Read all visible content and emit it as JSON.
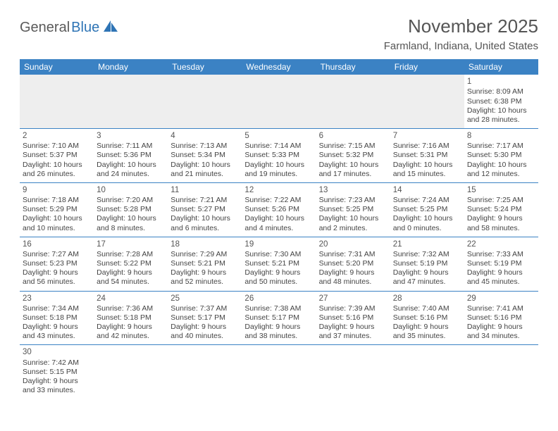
{
  "logo": {
    "text1": "General",
    "text2": "Blue"
  },
  "title": "November 2025",
  "location": "Farmland, Indiana, United States",
  "colors": {
    "header_bg": "#3b82c4",
    "header_text": "#ffffff",
    "border": "#3b82c4",
    "blank_bg": "#eeeeee",
    "logo_gray": "#5a5a5a",
    "logo_blue": "#2e74b5"
  },
  "day_names": [
    "Sunday",
    "Monday",
    "Tuesday",
    "Wednesday",
    "Thursday",
    "Friday",
    "Saturday"
  ],
  "weeks": [
    [
      {
        "blank": true
      },
      {
        "blank": true
      },
      {
        "blank": true
      },
      {
        "blank": true
      },
      {
        "blank": true
      },
      {
        "blank": true
      },
      {
        "day": "1",
        "sunrise": "Sunrise: 8:09 AM",
        "sunset": "Sunset: 6:38 PM",
        "daylight1": "Daylight: 10 hours",
        "daylight2": "and 28 minutes."
      }
    ],
    [
      {
        "day": "2",
        "sunrise": "Sunrise: 7:10 AM",
        "sunset": "Sunset: 5:37 PM",
        "daylight1": "Daylight: 10 hours",
        "daylight2": "and 26 minutes."
      },
      {
        "day": "3",
        "sunrise": "Sunrise: 7:11 AM",
        "sunset": "Sunset: 5:36 PM",
        "daylight1": "Daylight: 10 hours",
        "daylight2": "and 24 minutes."
      },
      {
        "day": "4",
        "sunrise": "Sunrise: 7:13 AM",
        "sunset": "Sunset: 5:34 PM",
        "daylight1": "Daylight: 10 hours",
        "daylight2": "and 21 minutes."
      },
      {
        "day": "5",
        "sunrise": "Sunrise: 7:14 AM",
        "sunset": "Sunset: 5:33 PM",
        "daylight1": "Daylight: 10 hours",
        "daylight2": "and 19 minutes."
      },
      {
        "day": "6",
        "sunrise": "Sunrise: 7:15 AM",
        "sunset": "Sunset: 5:32 PM",
        "daylight1": "Daylight: 10 hours",
        "daylight2": "and 17 minutes."
      },
      {
        "day": "7",
        "sunrise": "Sunrise: 7:16 AM",
        "sunset": "Sunset: 5:31 PM",
        "daylight1": "Daylight: 10 hours",
        "daylight2": "and 15 minutes."
      },
      {
        "day": "8",
        "sunrise": "Sunrise: 7:17 AM",
        "sunset": "Sunset: 5:30 PM",
        "daylight1": "Daylight: 10 hours",
        "daylight2": "and 12 minutes."
      }
    ],
    [
      {
        "day": "9",
        "sunrise": "Sunrise: 7:18 AM",
        "sunset": "Sunset: 5:29 PM",
        "daylight1": "Daylight: 10 hours",
        "daylight2": "and 10 minutes."
      },
      {
        "day": "10",
        "sunrise": "Sunrise: 7:20 AM",
        "sunset": "Sunset: 5:28 PM",
        "daylight1": "Daylight: 10 hours",
        "daylight2": "and 8 minutes."
      },
      {
        "day": "11",
        "sunrise": "Sunrise: 7:21 AM",
        "sunset": "Sunset: 5:27 PM",
        "daylight1": "Daylight: 10 hours",
        "daylight2": "and 6 minutes."
      },
      {
        "day": "12",
        "sunrise": "Sunrise: 7:22 AM",
        "sunset": "Sunset: 5:26 PM",
        "daylight1": "Daylight: 10 hours",
        "daylight2": "and 4 minutes."
      },
      {
        "day": "13",
        "sunrise": "Sunrise: 7:23 AM",
        "sunset": "Sunset: 5:25 PM",
        "daylight1": "Daylight: 10 hours",
        "daylight2": "and 2 minutes."
      },
      {
        "day": "14",
        "sunrise": "Sunrise: 7:24 AM",
        "sunset": "Sunset: 5:25 PM",
        "daylight1": "Daylight: 10 hours",
        "daylight2": "and 0 minutes."
      },
      {
        "day": "15",
        "sunrise": "Sunrise: 7:25 AM",
        "sunset": "Sunset: 5:24 PM",
        "daylight1": "Daylight: 9 hours",
        "daylight2": "and 58 minutes."
      }
    ],
    [
      {
        "day": "16",
        "sunrise": "Sunrise: 7:27 AM",
        "sunset": "Sunset: 5:23 PM",
        "daylight1": "Daylight: 9 hours",
        "daylight2": "and 56 minutes."
      },
      {
        "day": "17",
        "sunrise": "Sunrise: 7:28 AM",
        "sunset": "Sunset: 5:22 PM",
        "daylight1": "Daylight: 9 hours",
        "daylight2": "and 54 minutes."
      },
      {
        "day": "18",
        "sunrise": "Sunrise: 7:29 AM",
        "sunset": "Sunset: 5:21 PM",
        "daylight1": "Daylight: 9 hours",
        "daylight2": "and 52 minutes."
      },
      {
        "day": "19",
        "sunrise": "Sunrise: 7:30 AM",
        "sunset": "Sunset: 5:21 PM",
        "daylight1": "Daylight: 9 hours",
        "daylight2": "and 50 minutes."
      },
      {
        "day": "20",
        "sunrise": "Sunrise: 7:31 AM",
        "sunset": "Sunset: 5:20 PM",
        "daylight1": "Daylight: 9 hours",
        "daylight2": "and 48 minutes."
      },
      {
        "day": "21",
        "sunrise": "Sunrise: 7:32 AM",
        "sunset": "Sunset: 5:19 PM",
        "daylight1": "Daylight: 9 hours",
        "daylight2": "and 47 minutes."
      },
      {
        "day": "22",
        "sunrise": "Sunrise: 7:33 AM",
        "sunset": "Sunset: 5:19 PM",
        "daylight1": "Daylight: 9 hours",
        "daylight2": "and 45 minutes."
      }
    ],
    [
      {
        "day": "23",
        "sunrise": "Sunrise: 7:34 AM",
        "sunset": "Sunset: 5:18 PM",
        "daylight1": "Daylight: 9 hours",
        "daylight2": "and 43 minutes."
      },
      {
        "day": "24",
        "sunrise": "Sunrise: 7:36 AM",
        "sunset": "Sunset: 5:18 PM",
        "daylight1": "Daylight: 9 hours",
        "daylight2": "and 42 minutes."
      },
      {
        "day": "25",
        "sunrise": "Sunrise: 7:37 AM",
        "sunset": "Sunset: 5:17 PM",
        "daylight1": "Daylight: 9 hours",
        "daylight2": "and 40 minutes."
      },
      {
        "day": "26",
        "sunrise": "Sunrise: 7:38 AM",
        "sunset": "Sunset: 5:17 PM",
        "daylight1": "Daylight: 9 hours",
        "daylight2": "and 38 minutes."
      },
      {
        "day": "27",
        "sunrise": "Sunrise: 7:39 AM",
        "sunset": "Sunset: 5:16 PM",
        "daylight1": "Daylight: 9 hours",
        "daylight2": "and 37 minutes."
      },
      {
        "day": "28",
        "sunrise": "Sunrise: 7:40 AM",
        "sunset": "Sunset: 5:16 PM",
        "daylight1": "Daylight: 9 hours",
        "daylight2": "and 35 minutes."
      },
      {
        "day": "29",
        "sunrise": "Sunrise: 7:41 AM",
        "sunset": "Sunset: 5:16 PM",
        "daylight1": "Daylight: 9 hours",
        "daylight2": "and 34 minutes."
      }
    ],
    [
      {
        "day": "30",
        "sunrise": "Sunrise: 7:42 AM",
        "sunset": "Sunset: 5:15 PM",
        "daylight1": "Daylight: 9 hours",
        "daylight2": "and 33 minutes."
      },
      {
        "blank": true,
        "trailing": true
      },
      {
        "blank": true,
        "trailing": true
      },
      {
        "blank": true,
        "trailing": true
      },
      {
        "blank": true,
        "trailing": true
      },
      {
        "blank": true,
        "trailing": true
      },
      {
        "blank": true,
        "trailing": true
      }
    ]
  ]
}
